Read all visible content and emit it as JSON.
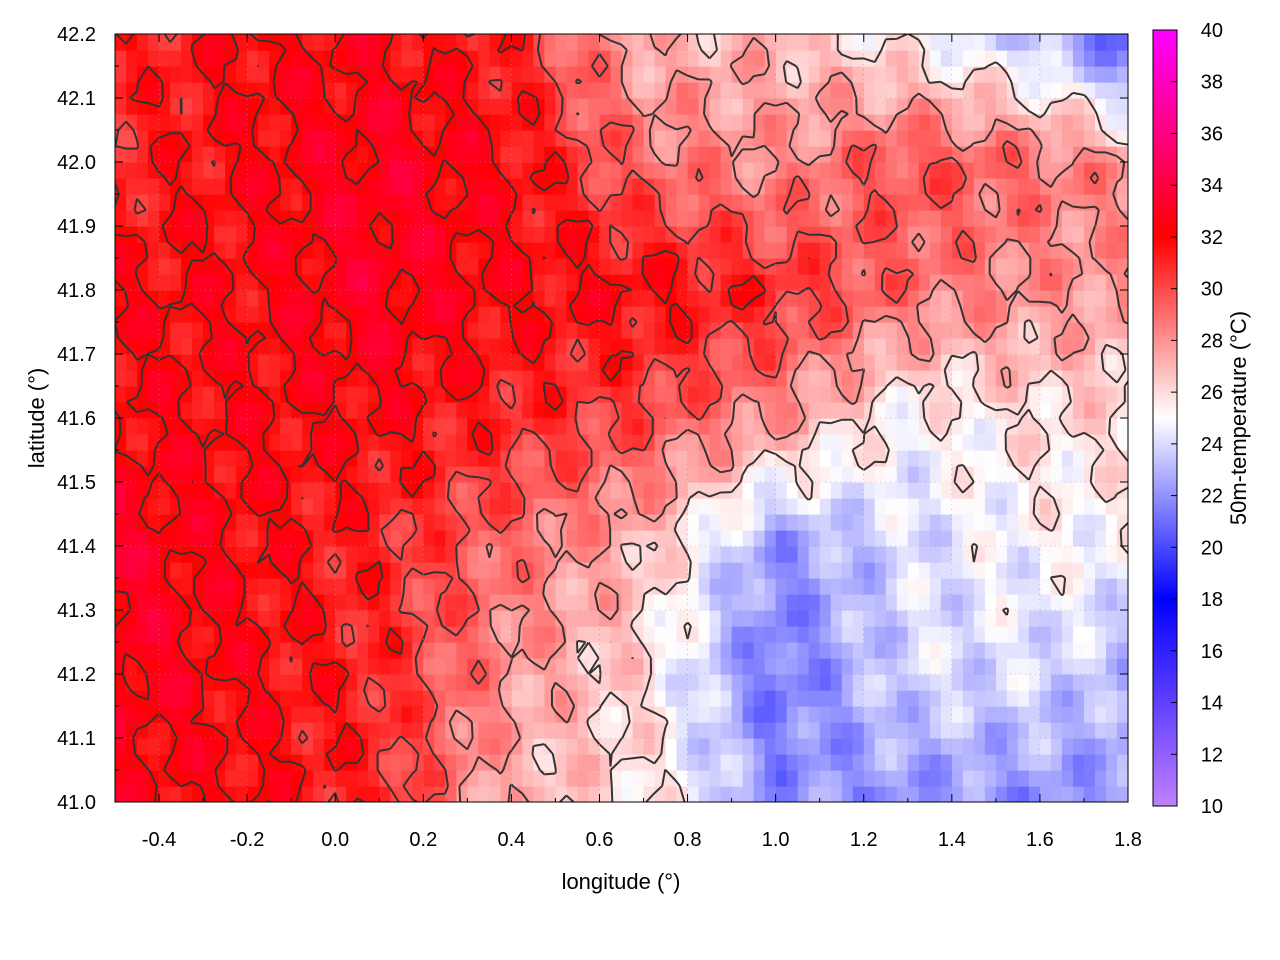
{
  "chart_data": {
    "type": "heatmap",
    "title": "",
    "xlabel": "longitude (°)",
    "ylabel": "latitude (°)",
    "colorbar_label": "50m-temperature (°C)",
    "xlim": [
      -0.5,
      1.8
    ],
    "ylim": [
      41.0,
      42.2
    ],
    "zlim": [
      10,
      40
    ],
    "x_ticks": [
      -0.4,
      -0.2,
      0.0,
      0.2,
      0.4,
      0.6,
      0.8,
      1.0,
      1.2,
      1.4,
      1.6,
      1.8
    ],
    "x_tick_labels": [
      "-0.4",
      "-0.2",
      "0.0",
      "0.2",
      "0.4",
      "0.6",
      "0.8",
      "1.0",
      "1.2",
      "1.4",
      "1.6",
      "1.8"
    ],
    "y_ticks": [
      41.0,
      41.1,
      41.2,
      41.3,
      41.4,
      41.5,
      41.6,
      41.7,
      41.8,
      41.9,
      42.0,
      42.1,
      42.2
    ],
    "y_tick_labels": [
      "41.0",
      "41.1",
      "41.2",
      "41.3",
      "41.4",
      "41.5",
      "41.6",
      "41.7",
      "41.8",
      "41.9",
      "42.0",
      "42.1",
      "42.2"
    ],
    "colorbar_ticks": [
      10,
      12,
      14,
      16,
      18,
      20,
      22,
      24,
      26,
      28,
      30,
      32,
      34,
      36,
      38,
      40
    ],
    "colorbar_tick_labels": [
      "10",
      "12",
      "14",
      "16",
      "18",
      "20",
      "22",
      "24",
      "26",
      "28",
      "30",
      "32",
      "34",
      "36",
      "38",
      "40"
    ],
    "colormap": [
      {
        "value": 10,
        "color": "#c080ff"
      },
      {
        "value": 18,
        "color": "#0000ff"
      },
      {
        "value": 25,
        "color": "#ffffff"
      },
      {
        "value": 32,
        "color": "#ff0000"
      },
      {
        "value": 40,
        "color": "#ff00ff"
      }
    ],
    "contour_levels": [
      26,
      28,
      30,
      32
    ],
    "contour_color": "#333333",
    "grid": true,
    "field_samples": {
      "x": [
        -0.5,
        -0.2,
        0.1,
        0.4,
        0.7,
        1.0,
        1.3,
        1.6,
        1.8
      ],
      "y": [
        41.0,
        41.2,
        41.4,
        41.6,
        41.8,
        42.0,
        42.2
      ],
      "z": [
        [
          32,
          32,
          31,
          27,
          26,
          22,
          22,
          22,
          22
        ],
        [
          33,
          32,
          31,
          28,
          26,
          21,
          24,
          24,
          23
        ],
        [
          33,
          32,
          31,
          29,
          27,
          22,
          24,
          25,
          25
        ],
        [
          32,
          32,
          32,
          31,
          30,
          28,
          25,
          26,
          26
        ],
        [
          32,
          32,
          33,
          32,
          32,
          31,
          29,
          28,
          28
        ],
        [
          31,
          32,
          33,
          32,
          29,
          28,
          30,
          29,
          28
        ],
        [
          31,
          32,
          32,
          31,
          27,
          27,
          25,
          23,
          20
        ]
      ]
    }
  }
}
